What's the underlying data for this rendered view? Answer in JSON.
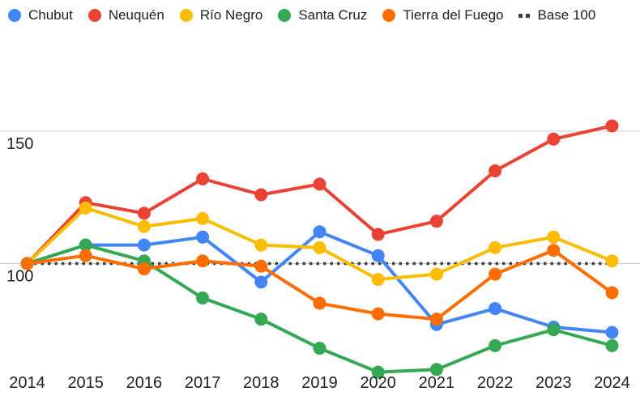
{
  "legend": {
    "items": [
      {
        "label": "Chubut",
        "color": "#4285F4",
        "swatch": "circle"
      },
      {
        "label": "Neuquén",
        "color": "#EA4335",
        "swatch": "circle"
      },
      {
        "label": "Río Negro",
        "color": "#FBBC04",
        "swatch": "circle"
      },
      {
        "label": "Santa Cruz",
        "color": "#34A853",
        "swatch": "circle"
      },
      {
        "label": "Tierra del Fuego",
        "color": "#FF6D01",
        "swatch": "circle"
      },
      {
        "label": "Base 100",
        "color": "#3C4043",
        "swatch": "dotted"
      }
    ]
  },
  "chart_data": {
    "type": "line",
    "title": "",
    "x": [
      "2014",
      "2015",
      "2016",
      "2017",
      "2018",
      "2019",
      "2020",
      "2021",
      "2022",
      "2023",
      "2024"
    ],
    "series": [
      {
        "name": "Chubut",
        "color": "#4285F4",
        "values": [
          100,
          107,
          107,
          110,
          93,
          112,
          103,
          77,
          83,
          76,
          74
        ]
      },
      {
        "name": "Neuquén",
        "color": "#EA4335",
        "values": [
          100,
          123,
          119,
          132,
          126,
          130,
          111,
          116,
          135,
          147,
          152
        ]
      },
      {
        "name": "Río Negro",
        "color": "#FBBC04",
        "values": [
          100,
          121,
          114,
          117,
          107,
          106,
          94,
          96,
          106,
          110,
          101
        ]
      },
      {
        "name": "Santa Cruz",
        "color": "#34A853",
        "values": [
          100,
          107,
          101,
          87,
          79,
          68,
          59,
          60,
          69,
          75,
          69
        ]
      },
      {
        "name": "Tierra del Fuego",
        "color": "#FF6D01",
        "values": [
          100,
          103,
          98,
          101,
          99,
          85,
          81,
          79,
          96,
          105,
          89
        ]
      }
    ],
    "baseline": {
      "name": "Base 100",
      "value": 100,
      "color": "#3C4043",
      "style": "dotted"
    },
    "y_axis": {
      "ticks": [
        150,
        100
      ],
      "range_shown": [
        50,
        183
      ]
    },
    "grid": true,
    "gridline_color": "#CCCCCC",
    "legend_position": "top",
    "background": "#FFFFFF"
  }
}
